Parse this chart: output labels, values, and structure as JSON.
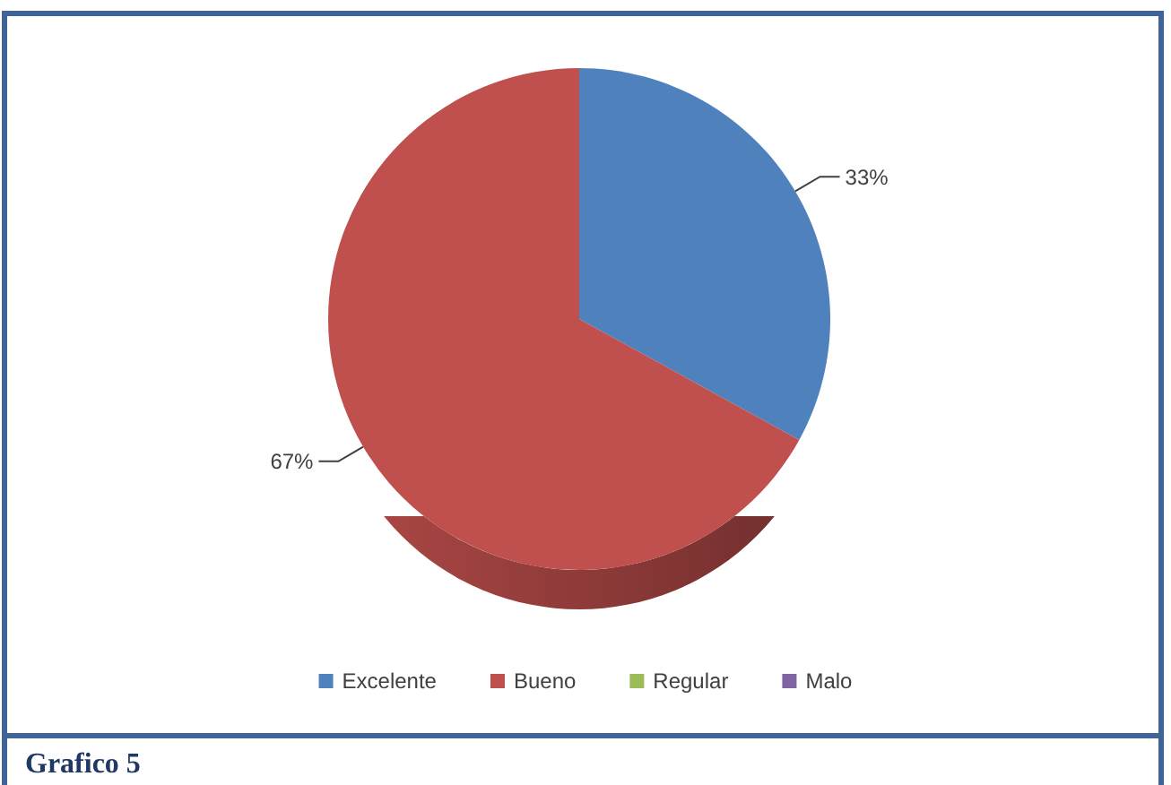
{
  "chart_data": {
    "type": "pie",
    "categories": [
      "Excelente",
      "Bueno",
      "Regular",
      "Malo"
    ],
    "values": [
      33,
      67,
      0,
      0
    ],
    "colors": [
      "#4f81bd",
      "#c0504d",
      "#9bbb59",
      "#8064a2"
    ],
    "value_labels": [
      "33%",
      "67%",
      null,
      null
    ],
    "legend": "bottom",
    "annotations": [
      "Grafico 5"
    ]
  }
}
